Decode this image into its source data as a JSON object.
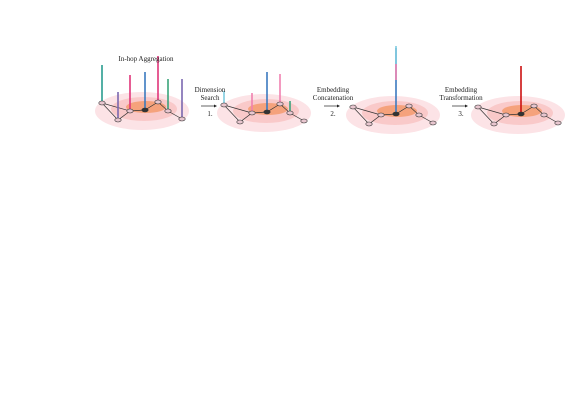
{
  "title": "In-hop Aggregation",
  "steps": [
    {
      "lines": [
        "Dimension",
        "Search"
      ],
      "number": "1."
    },
    {
      "lines": [
        "Embedding",
        "Concatenation"
      ],
      "number": "2."
    },
    {
      "lines": [
        "Embedding",
        "Transformation"
      ],
      "number": "3."
    }
  ]
}
